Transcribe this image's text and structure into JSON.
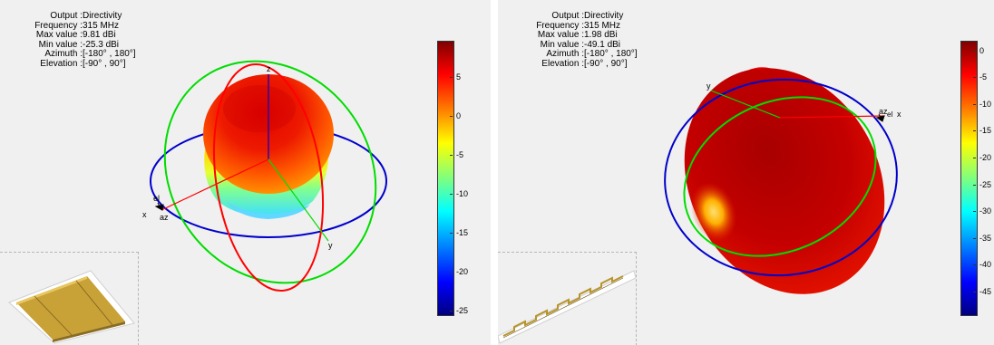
{
  "chart_data": [
    {
      "type": "3d-radiation-pattern",
      "info": [
        {
          "label": "Output :",
          "value": "Directivity"
        },
        {
          "label": "Frequency :",
          "value": "315 MHz"
        },
        {
          "label": "Max value :",
          "value": "9.81 dBi"
        },
        {
          "label": "Min value :",
          "value": "-25.3 dBi"
        },
        {
          "label": "Azimuth :",
          "value": "[-180° , 180°]"
        },
        {
          "label": "Elevation :",
          "value": "[-90° , 90°]"
        }
      ],
      "colorbar": {
        "min": -25.3,
        "max": 9.81,
        "ticks": [
          5,
          0,
          -5,
          -10,
          -15,
          -20,
          -25
        ]
      },
      "axis_labels": {
        "x": "x",
        "y": "y",
        "z": "z",
        "az": "az",
        "el": "el"
      },
      "circle_colors": {
        "azimuth": "#0000cc",
        "elevation_xz": "#ff0000",
        "elevation_yz": "#00dd00"
      }
    },
    {
      "type": "3d-radiation-pattern",
      "info": [
        {
          "label": "Output :",
          "value": "Directivity"
        },
        {
          "label": "Frequency :",
          "value": "315 MHz"
        },
        {
          "label": "Max value :",
          "value": "1.98 dBi"
        },
        {
          "label": "Min value :",
          "value": "-49.1 dBi"
        },
        {
          "label": "Azimuth :",
          "value": "[-180° , 180°]"
        },
        {
          "label": "Elevation :",
          "value": "[-90° , 90°]"
        }
      ],
      "colorbar": {
        "min": -49.1,
        "max": 1.98,
        "ticks": [
          0,
          -5,
          -10,
          -15,
          -20,
          -25,
          -30,
          -35,
          -40,
          -45
        ]
      },
      "axis_labels": {
        "x": "x",
        "y": "y",
        "az": "az",
        "el": "el"
      },
      "circle_colors": {
        "azimuth": "#0000cc",
        "elevation_xz": "#ff0000",
        "elevation_yz": "#00dd00"
      }
    }
  ]
}
